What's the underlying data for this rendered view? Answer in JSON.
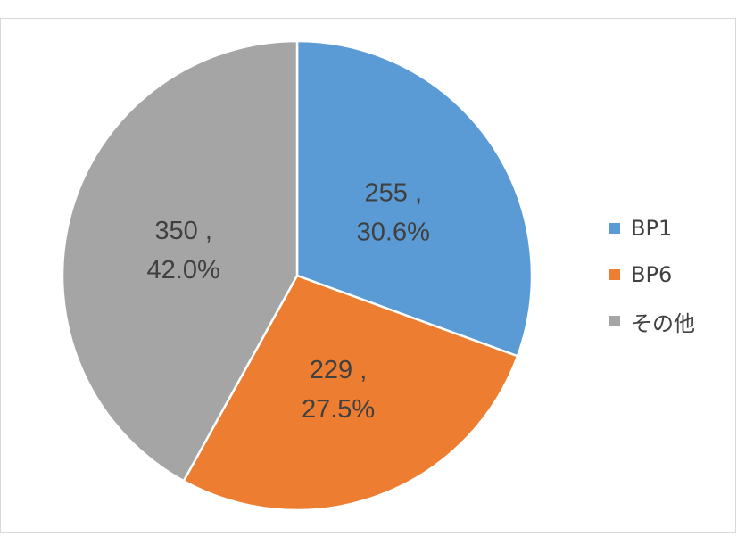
{
  "chart_data": {
    "type": "pie",
    "categories": [
      "BP1",
      "BP6",
      "その他"
    ],
    "values": [
      255,
      229,
      350
    ],
    "percentages": [
      "30.6%",
      "27.5%",
      "42.0%"
    ],
    "value_labels": [
      "255 ,",
      "229 ,",
      "350 ,"
    ],
    "colors": [
      "#5b9bd5",
      "#ed7d31",
      "#a5a5a5"
    ],
    "title": "",
    "start_angle_deg": 0,
    "direction": "clockwise",
    "legend_position": "right"
  }
}
